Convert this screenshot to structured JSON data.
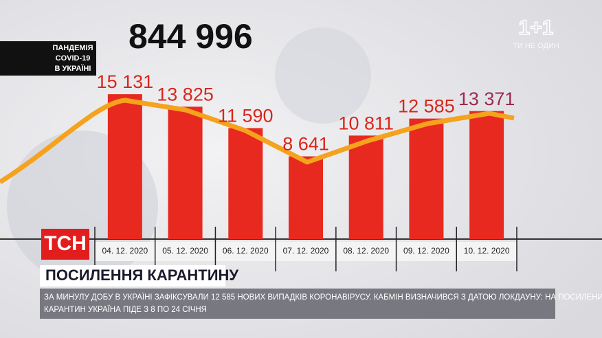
{
  "chart_data": {
    "type": "bar",
    "categories": [
      "04. 12. 2020",
      "05. 12. 2020",
      "06. 12. 2020",
      "07. 12. 2020",
      "08. 12. 2020",
      "09. 12. 2020",
      "10. 12. 2020"
    ],
    "values": [
      15131,
      13825,
      11590,
      8641,
      10811,
      12585,
      13371
    ],
    "value_labels": [
      "15 131",
      "13 825",
      "11 590",
      "8 641",
      "10 811",
      "12 585",
      "13 371"
    ],
    "value_label_colors": [
      "#d8261c",
      "#d8261c",
      "#d8261c",
      "#d8261c",
      "#d8261c",
      "#d8261c",
      "#9a2a4e"
    ],
    "color": "#e8291f",
    "ylim": [
      0,
      16000
    ]
  },
  "total": "844 996",
  "info_box": [
    "ПАНДЕМІЯ",
    "COVID-19",
    "В УКРАЇНІ"
  ],
  "logo": "ТСН",
  "channel": {
    "logo": "1+1",
    "slogan": "ТИ НЕ ОДИН"
  },
  "headline": "ПОСИЛЕННЯ КАРАНТИНУ",
  "ticker": [
    "ЗА МИНУЛУ ДОБУ В УКРАЇНІ ЗАФІКСУВАЛИ 12 585 НОВИХ ВИПАДКІВ КОРОНАВІРУСУ. КАБМІН ВИЗНАЧИВСЯ З ДАТОЮ ЛОКДАУНУ: НА ПОСИЛЕНИЙ",
    "КАРАНТИН УКРАЇНА ПІДЕ З 8 ПО 24 СІЧНЯ"
  ]
}
